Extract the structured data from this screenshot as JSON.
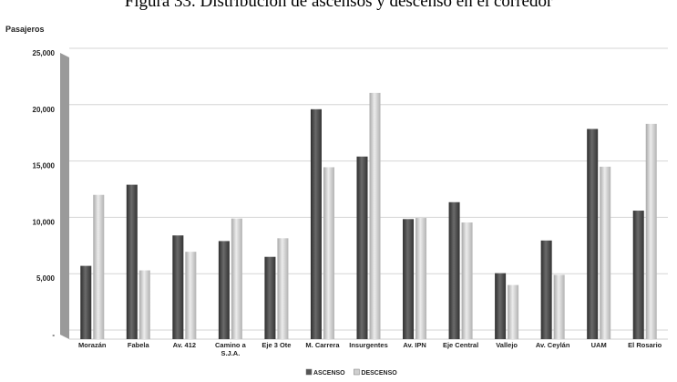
{
  "caption": "Figura 33. Distribución de ascensos y descenso en el corredor",
  "chart_data": {
    "type": "bar",
    "title": "",
    "ylabel": "Pasajeros",
    "xlabel": "",
    "ylim": [
      0,
      25000
    ],
    "yticks": [
      0,
      5000,
      10000,
      15000,
      20000,
      25000
    ],
    "ytick_labels": [
      "-",
      "5,000",
      "10,000",
      "15,000",
      "20,000",
      "25,000"
    ],
    "grid": true,
    "legend_position": "bottom",
    "categories": [
      [
        "Morazán"
      ],
      [
        "Fabela"
      ],
      [
        "Av. 412"
      ],
      [
        "Camino a",
        "S.J.A."
      ],
      [
        "Eje 3 Ote"
      ],
      [
        "M. Carrera"
      ],
      [
        "Insurgentes"
      ],
      [
        "Av. IPN"
      ],
      [
        "Eje Central"
      ],
      [
        "Vallejo"
      ],
      [
        "Av. Ceylán"
      ],
      [
        "UAM"
      ],
      [
        "El Rosario"
      ]
    ],
    "series": [
      {
        "name": "ASCENSO",
        "color": "#555555",
        "values": [
          6100,
          13300,
          8800,
          8300,
          6900,
          20000,
          15800,
          10250,
          11750,
          5450,
          8350,
          18250,
          11000
        ]
      },
      {
        "name": "DESCENSO",
        "color": "#cfcfcf",
        "values": [
          12400,
          5700,
          7350,
          10300,
          8550,
          14850,
          21450,
          10350,
          9950,
          4400,
          5300,
          14900,
          18700
        ]
      }
    ]
  }
}
